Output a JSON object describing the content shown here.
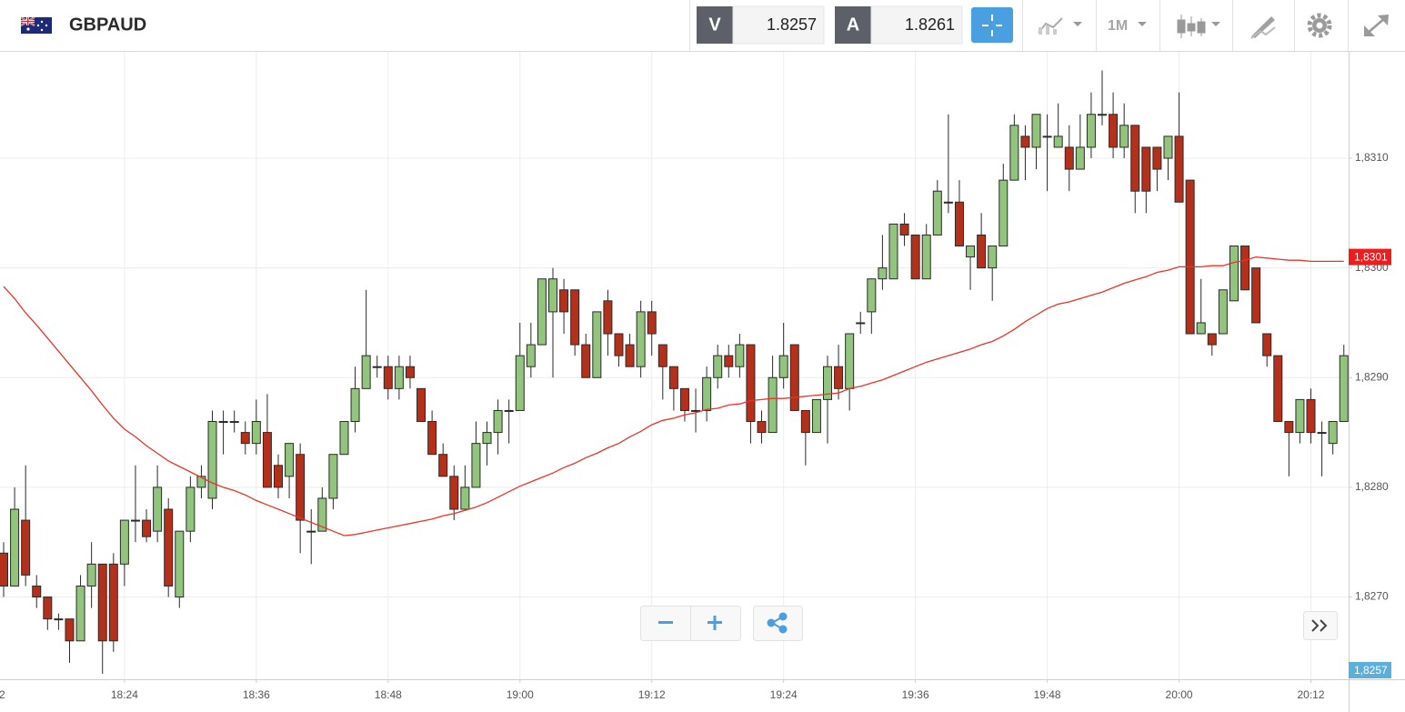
{
  "header": {
    "symbol": "GBPAUD",
    "bid_label": "V",
    "bid": 1.8257,
    "ask_label": "A",
    "ask": 1.8261,
    "timeframe": "1M"
  },
  "chart_data": {
    "type": "candlestick",
    "x_cut_label": "2",
    "categories": [
      null,
      null,
      null,
      null,
      null,
      null,
      null,
      null,
      null,
      null,
      null,
      "18:24",
      null,
      null,
      null,
      null,
      null,
      null,
      null,
      null,
      null,
      null,
      null,
      "18:36",
      null,
      null,
      null,
      null,
      null,
      null,
      null,
      null,
      null,
      null,
      null,
      "18:48",
      null,
      null,
      null,
      null,
      null,
      null,
      null,
      null,
      null,
      null,
      null,
      "19:00",
      null,
      null,
      null,
      null,
      null,
      null,
      null,
      null,
      null,
      null,
      null,
      "19:12",
      null,
      null,
      null,
      null,
      null,
      null,
      null,
      null,
      null,
      null,
      null,
      "19:24",
      null,
      null,
      null,
      null,
      null,
      null,
      null,
      null,
      null,
      null,
      null,
      "19:36",
      null,
      null,
      null,
      null,
      null,
      null,
      null,
      null,
      null,
      null,
      null,
      "19:48",
      null,
      null,
      null,
      null,
      null,
      null,
      null,
      null,
      null,
      null,
      null,
      "20:00",
      null,
      null,
      null,
      null,
      null,
      null,
      null,
      null,
      null,
      null,
      null,
      "20:12",
      null,
      null,
      null
    ],
    "open": [
      1.8274,
      1.8271,
      1.8277,
      1.8271,
      1.827,
      1.8268,
      1.8268,
      1.8266,
      1.8271,
      1.8273,
      1.8273,
      1.8273,
      1.8277,
      1.8277,
      1.8276,
      1.8278,
      1.827,
      1.8276,
      1.828,
      1.8279,
      1.8286,
      1.8286,
      1.8285,
      1.8284,
      1.8285,
      1.8282,
      1.8281,
      1.8283,
      1.8276,
      1.8276,
      1.8279,
      1.8283,
      1.8286,
      1.8289,
      1.8291,
      1.8291,
      1.8289,
      1.8291,
      1.8289,
      1.8286,
      1.8283,
      1.8281,
      1.8278,
      1.828,
      1.8284,
      1.8285,
      1.8287,
      1.8287,
      1.8291,
      1.8293,
      1.8296,
      1.8298,
      1.8298,
      1.8293,
      1.829,
      1.8297,
      1.8294,
      1.8293,
      1.8291,
      1.8296,
      1.8293,
      1.8291,
      1.8289,
      1.8287,
      1.8287,
      1.829,
      1.8292,
      1.8291,
      1.8293,
      1.8286,
      1.8285,
      1.829,
      1.8293,
      1.8287,
      1.8285,
      1.8288,
      1.8291,
      1.8289,
      1.8295,
      1.8296,
      1.8299,
      1.8299,
      1.8304,
      1.8303,
      1.8299,
      1.8303,
      1.8306,
      1.8306,
      1.8301,
      1.8303,
      1.83,
      1.8302,
      1.8308,
      1.8312,
      1.8311,
      1.8312,
      1.8311,
      1.8311,
      1.8309,
      1.8311,
      1.8314,
      1.8314,
      1.8311,
      1.8313,
      1.8311,
      1.8311,
      1.831,
      1.8312,
      1.8308,
      1.8294,
      1.8294,
      1.8294,
      1.8297,
      1.8302,
      1.83,
      1.8294,
      1.8292,
      1.8286,
      1.8285,
      1.8288,
      1.8285,
      1.8284,
      1.8286
    ],
    "high": [
      1.8275,
      1.828,
      1.8282,
      1.8272,
      1.827,
      1.82685,
      1.8268,
      1.8272,
      1.8275,
      1.8273,
      1.8274,
      1.8277,
      1.8282,
      1.8278,
      1.8282,
      1.8279,
      1.8276,
      1.8281,
      1.8282,
      1.8287,
      1.8287,
      1.8287,
      1.8286,
      1.8288,
      1.82885,
      1.8283,
      1.8284,
      1.8284,
      1.8278,
      1.828,
      1.8283,
      1.8286,
      1.8291,
      1.8298,
      1.8292,
      1.8292,
      1.8292,
      1.8292,
      1.8289,
      1.8287,
      1.8284,
      1.8282,
      1.8282,
      1.8286,
      1.8286,
      1.8288,
      1.8288,
      1.8295,
      1.8295,
      1.8299,
      1.83,
      1.8299,
      1.8298,
      1.8294,
      1.8296,
      1.8298,
      1.8294,
      1.8294,
      1.8297,
      1.8297,
      1.8293,
      1.8291,
      1.8289,
      1.8289,
      1.8291,
      1.8293,
      1.8293,
      1.8294,
      1.8293,
      1.8287,
      1.8292,
      1.8295,
      1.8293,
      1.8287,
      1.8288,
      1.8292,
      1.8293,
      1.8294,
      1.8296,
      1.8299,
      1.8303,
      1.8304,
      1.8305,
      1.8303,
      1.8304,
      1.8308,
      1.8314,
      1.8308,
      1.8302,
      1.8305,
      1.8302,
      1.83095,
      1.8314,
      1.8313,
      1.8314,
      1.8314,
      1.8315,
      1.8313,
      1.8314,
      1.8316,
      1.8318,
      1.8316,
      1.8315,
      1.8313,
      1.8311,
      1.8311,
      1.8312,
      1.8316,
      1.8308,
      1.8299,
      1.8294,
      1.8298,
      1.8302,
      1.8302,
      1.83,
      1.8294,
      1.8292,
      1.8286,
      1.8288,
      1.8289,
      1.8286,
      1.8286,
      1.8293
    ],
    "low": [
      1.827,
      1.8271,
      1.8271,
      1.8269,
      1.8267,
      1.8267,
      1.8264,
      1.8266,
      1.8269,
      1.8263,
      1.8265,
      1.8271,
      1.8275,
      1.8275,
      1.8275,
      1.827,
      1.8269,
      1.8275,
      1.8279,
      1.8278,
      1.8283,
      1.8285,
      1.8283,
      1.8283,
      1.828,
      1.8279,
      1.8279,
      1.8274,
      1.8273,
      1.8276,
      1.8278,
      1.8283,
      1.8285,
      1.8289,
      1.829,
      1.8288,
      1.8288,
      1.8289,
      1.8286,
      1.8283,
      1.8281,
      1.8277,
      1.8278,
      1.828,
      1.8282,
      1.8283,
      1.8284,
      1.8287,
      1.829,
      1.8293,
      1.829,
      1.8294,
      1.8292,
      1.829,
      1.829,
      1.8292,
      1.8291,
      1.8291,
      1.829,
      1.8292,
      1.8288,
      1.8287,
      1.8286,
      1.8285,
      1.8286,
      1.8289,
      1.829,
      1.829,
      1.8284,
      1.8284,
      1.8285,
      1.8289,
      1.8287,
      1.8282,
      1.8285,
      1.8284,
      1.8288,
      1.8287,
      1.8294,
      1.8294,
      1.8298,
      1.8299,
      1.8302,
      1.8299,
      1.8299,
      1.8303,
      1.8305,
      1.8302,
      1.8298,
      1.83,
      1.8297,
      1.8302,
      1.8308,
      1.8308,
      1.8309,
      1.8307,
      1.8311,
      1.8307,
      1.8309,
      1.831,
      1.8313,
      1.831,
      1.831,
      1.8305,
      1.8305,
      1.8307,
      1.8308,
      1.8306,
      1.8294,
      1.8294,
      1.8292,
      1.8294,
      1.8297,
      1.8298,
      1.8295,
      1.8291,
      1.8286,
      1.8281,
      1.8284,
      1.8284,
      1.8281,
      1.8283,
      1.8286
    ],
    "close": [
      1.8271,
      1.8278,
      1.8272,
      1.827,
      1.8268,
      1.8268,
      1.8266,
      1.8271,
      1.8273,
      1.8266,
      1.8266,
      1.8277,
      1.8277,
      1.82755,
      1.828,
      1.8271,
      1.8276,
      1.828,
      1.8281,
      1.8286,
      1.8286,
      1.8286,
      1.8284,
      1.8286,
      1.828,
      1.828,
      1.8284,
      1.8277,
      1.8276,
      1.8279,
      1.8283,
      1.8286,
      1.8289,
      1.8292,
      1.8291,
      1.8289,
      1.8291,
      1.829,
      1.8286,
      1.8283,
      1.8281,
      1.8278,
      1.828,
      1.8284,
      1.8285,
      1.8287,
      1.8287,
      1.8292,
      1.8293,
      1.8299,
      1.8299,
      1.8296,
      1.8293,
      1.829,
      1.8296,
      1.8294,
      1.8292,
      1.8291,
      1.8296,
      1.8294,
      1.8291,
      1.8289,
      1.8287,
      1.8287,
      1.829,
      1.8292,
      1.8291,
      1.8293,
      1.8286,
      1.8285,
      1.829,
      1.8292,
      1.8287,
      1.8285,
      1.8288,
      1.8291,
      1.8289,
      1.8294,
      1.8295,
      1.8299,
      1.83,
      1.8304,
      1.8303,
      1.8299,
      1.8303,
      1.8307,
      1.8306,
      1.8302,
      1.8302,
      1.83,
      1.8302,
      1.8308,
      1.8313,
      1.8311,
      1.8314,
      1.8312,
      1.8312,
      1.8309,
      1.8311,
      1.8314,
      1.8314,
      1.8311,
      1.8313,
      1.8307,
      1.8307,
      1.8309,
      1.8312,
      1.8306,
      1.8294,
      1.8295,
      1.8293,
      1.8298,
      1.8302,
      1.8298,
      1.8295,
      1.8292,
      1.8286,
      1.8285,
      1.8288,
      1.8285,
      1.8285,
      1.8286,
      1.8292
    ],
    "up_color": "#93c47d",
    "down_color": "#b5301a",
    "moving_average": {
      "color": "#e8342b",
      "values": [
        1.82983,
        1.82972,
        1.82959,
        1.82948,
        1.82936,
        1.82924,
        1.82912,
        1.829,
        1.82888,
        1.82875,
        1.82863,
        1.82853,
        1.82846,
        1.82838,
        1.82831,
        1.82824,
        1.82819,
        1.82814,
        1.82809,
        1.82804,
        1.828,
        1.82797,
        1.82793,
        1.82788,
        1.82784,
        1.8278,
        1.82776,
        1.82772,
        1.82768,
        1.82764,
        1.8276,
        1.82756,
        1.82757,
        1.82759,
        1.82761,
        1.82763,
        1.82765,
        1.82767,
        1.82769,
        1.82771,
        1.82774,
        1.82776,
        1.82779,
        1.82782,
        1.82786,
        1.82791,
        1.82796,
        1.82801,
        1.82805,
        1.82809,
        1.82813,
        1.82818,
        1.82822,
        1.82827,
        1.82831,
        1.82836,
        1.8284,
        1.82846,
        1.82851,
        1.82857,
        1.82861,
        1.82863,
        1.82866,
        1.82868,
        1.82871,
        1.82872,
        1.82875,
        1.82876,
        1.82879,
        1.8288,
        1.82881,
        1.82881,
        1.82882,
        1.82883,
        1.82884,
        1.82885,
        1.82886,
        1.8289,
        1.82892,
        1.82895,
        1.82898,
        1.82902,
        1.82906,
        1.8291,
        1.82914,
        1.82917,
        1.8292,
        1.82923,
        1.82926,
        1.8293,
        1.82933,
        1.82938,
        1.82944,
        1.82951,
        1.82957,
        1.82963,
        1.82967,
        1.82969,
        1.82972,
        1.82975,
        1.82978,
        1.82982,
        1.82986,
        1.82989,
        1.82992,
        1.82996,
        1.82998,
        1.83001,
        1.83001,
        1.83001,
        1.83002,
        1.83002,
        1.83005,
        1.83007,
        1.8301,
        1.83009,
        1.83008,
        1.83007,
        1.83007,
        1.83006,
        1.83006,
        1.83006,
        1.83006
      ]
    },
    "ylim": [
      1.82625,
      1.83197
    ],
    "yticks": [
      {
        "value": 1.827,
        "label": "1,8270"
      },
      {
        "value": 1.828,
        "label": "1,8280"
      },
      {
        "value": 1.829,
        "label": "1,8290"
      },
      {
        "value": 1.83,
        "label": "1,8300"
      },
      {
        "value": 1.831,
        "label": "1,8310"
      }
    ],
    "price_tags": [
      {
        "value": 1.8301,
        "label": "1,8301",
        "color": "#ee1c1c"
      },
      {
        "value": 1.8257,
        "label": "1,8257",
        "color": "#5ab0d8"
      }
    ],
    "grid": true
  }
}
